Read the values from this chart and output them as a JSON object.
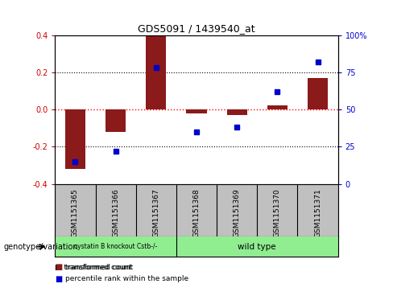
{
  "title": "GDS5091 / 1439540_at",
  "samples": [
    "GSM1151365",
    "GSM1151366",
    "GSM1151367",
    "GSM1151368",
    "GSM1151369",
    "GSM1151370",
    "GSM1151371"
  ],
  "red_values": [
    -0.32,
    -0.12,
    0.4,
    -0.02,
    -0.03,
    0.02,
    0.17
  ],
  "blue_values": [
    15,
    22,
    78,
    35,
    38,
    62,
    82
  ],
  "ylim_left": [
    -0.4,
    0.4
  ],
  "ylim_right": [
    0,
    100
  ],
  "yticks_left": [
    -0.4,
    -0.2,
    0.0,
    0.2,
    0.4
  ],
  "yticks_right": [
    0,
    25,
    50,
    75,
    100
  ],
  "ytick_labels_right": [
    "0",
    "25",
    "50",
    "75",
    "100%"
  ],
  "group1_label": "cystatin B knockout Cstb-/-",
  "group2_label": "wild type",
  "group1_samples": [
    0,
    1,
    2
  ],
  "group2_samples": [
    3,
    4,
    5,
    6
  ],
  "group1_color": "#90EE90",
  "group2_color": "#90EE90",
  "bar_color": "#8B1A1A",
  "dot_color": "#0000CC",
  "bg_color": "#FFFFFF",
  "plot_bg": "#FFFFFF",
  "sample_box_color": "#C0C0C0",
  "legend_label_red": "transformed count",
  "legend_label_blue": "percentile rank within the sample",
  "genotype_label": "genotype/variation",
  "dotted_line_color": "#000000",
  "zero_line_color": "#FF0000",
  "bar_width": 0.5
}
